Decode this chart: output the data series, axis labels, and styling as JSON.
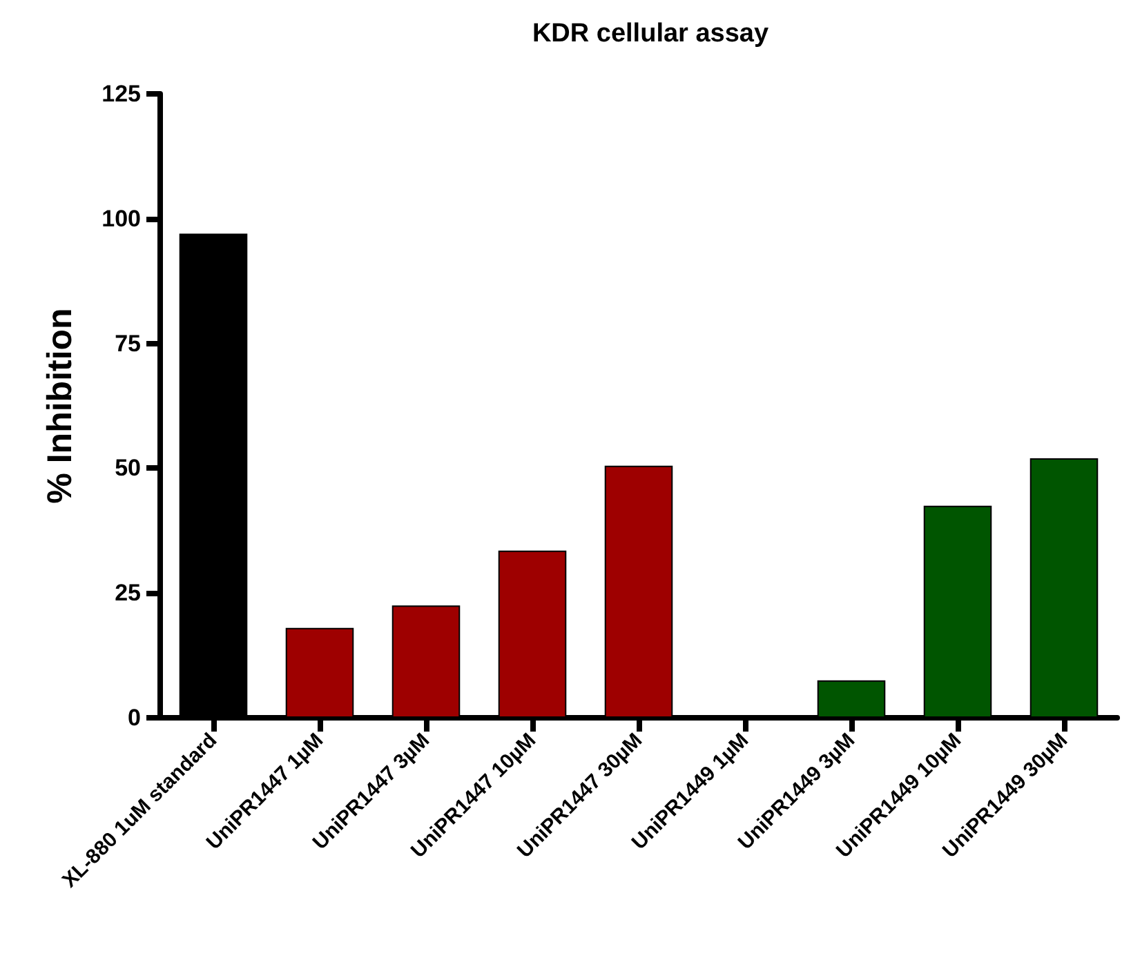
{
  "chart_data": {
    "type": "bar",
    "title": "KDR cellular assay",
    "ylabel": "% Inhibition",
    "categories": [
      "XL-880 1uM standard",
      "UniPR1447 1µM",
      "UniPR1447 3µM",
      "UniPR1447 10µM",
      "UniPR1447 30µM",
      "UniPR1449 1µM",
      "UniPR1449 3µM",
      "UniPR1449 10µM",
      "UniPR1449 30µM"
    ],
    "values": [
      97,
      18,
      22.5,
      33.5,
      50.5,
      0,
      7.5,
      42.5,
      52
    ],
    "colors": [
      "#000000",
      "#9e0000",
      "#9e0000",
      "#9e0000",
      "#9e0000",
      "#005500",
      "#005500",
      "#005500",
      "#005500"
    ],
    "ylim": [
      0,
      125
    ],
    "yticks": [
      0,
      25,
      50,
      75,
      100,
      125
    ],
    "grid": false
  }
}
